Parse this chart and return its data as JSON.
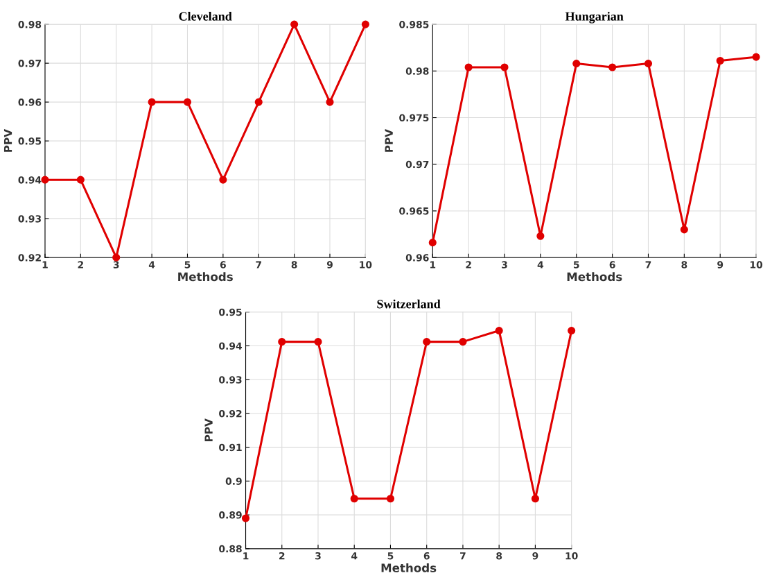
{
  "chart_data": [
    {
      "type": "line",
      "title": "Cleveland",
      "xlabel": "Methods",
      "ylabel": "PPV",
      "x": [
        1,
        2,
        3,
        4,
        5,
        6,
        7,
        8,
        9,
        10
      ],
      "xlim": [
        1,
        10
      ],
      "xticks": [
        1,
        2,
        3,
        4,
        5,
        6,
        7,
        8,
        9,
        10
      ],
      "ylim": [
        0.92,
        0.98
      ],
      "yticks": [
        0.92,
        0.93,
        0.94,
        0.95,
        0.96,
        0.97,
        0.98
      ],
      "grid": true,
      "marker": "circle",
      "line_style": "solid",
      "series": [
        {
          "color": "#e00000",
          "values": [
            0.94,
            0.94,
            0.92,
            0.96,
            0.96,
            0.94,
            0.96,
            0.98,
            0.96,
            0.98
          ]
        }
      ]
    },
    {
      "type": "line",
      "title": "Hungarian",
      "xlabel": "Methods",
      "ylabel": "PPV",
      "x": [
        1,
        2,
        3,
        4,
        5,
        6,
        7,
        8,
        9,
        10
      ],
      "xlim": [
        1,
        10
      ],
      "xticks": [
        1,
        2,
        3,
        4,
        5,
        6,
        7,
        8,
        9,
        10
      ],
      "ylim": [
        0.96,
        0.985
      ],
      "yticks": [
        0.96,
        0.965,
        0.97,
        0.975,
        0.98,
        0.985
      ],
      "grid": true,
      "marker": "circle",
      "line_style": "solid",
      "series": [
        {
          "color": "#e00000",
          "values": [
            0.9616,
            0.9804,
            0.9804,
            0.9623,
            0.9808,
            0.9804,
            0.9808,
            0.963,
            0.9811,
            0.9815
          ]
        }
      ]
    },
    {
      "type": "line",
      "title": "Switzerland",
      "xlabel": "Methods",
      "ylabel": "PPV",
      "x": [
        1,
        2,
        3,
        4,
        5,
        6,
        7,
        8,
        9,
        10
      ],
      "xlim": [
        1,
        10
      ],
      "xticks": [
        1,
        2,
        3,
        4,
        5,
        6,
        7,
        8,
        9,
        10
      ],
      "ylim": [
        0.88,
        0.95
      ],
      "yticks": [
        0.88,
        0.89,
        0.9,
        0.91,
        0.92,
        0.93,
        0.94,
        0.95
      ],
      "grid": true,
      "marker": "circle",
      "line_style": "solid",
      "series": [
        {
          "color": "#e00000",
          "values": [
            0.889,
            0.9412,
            0.9412,
            0.8948,
            0.8948,
            0.9412,
            0.9412,
            0.9445,
            0.8948,
            0.9445
          ]
        }
      ]
    }
  ]
}
